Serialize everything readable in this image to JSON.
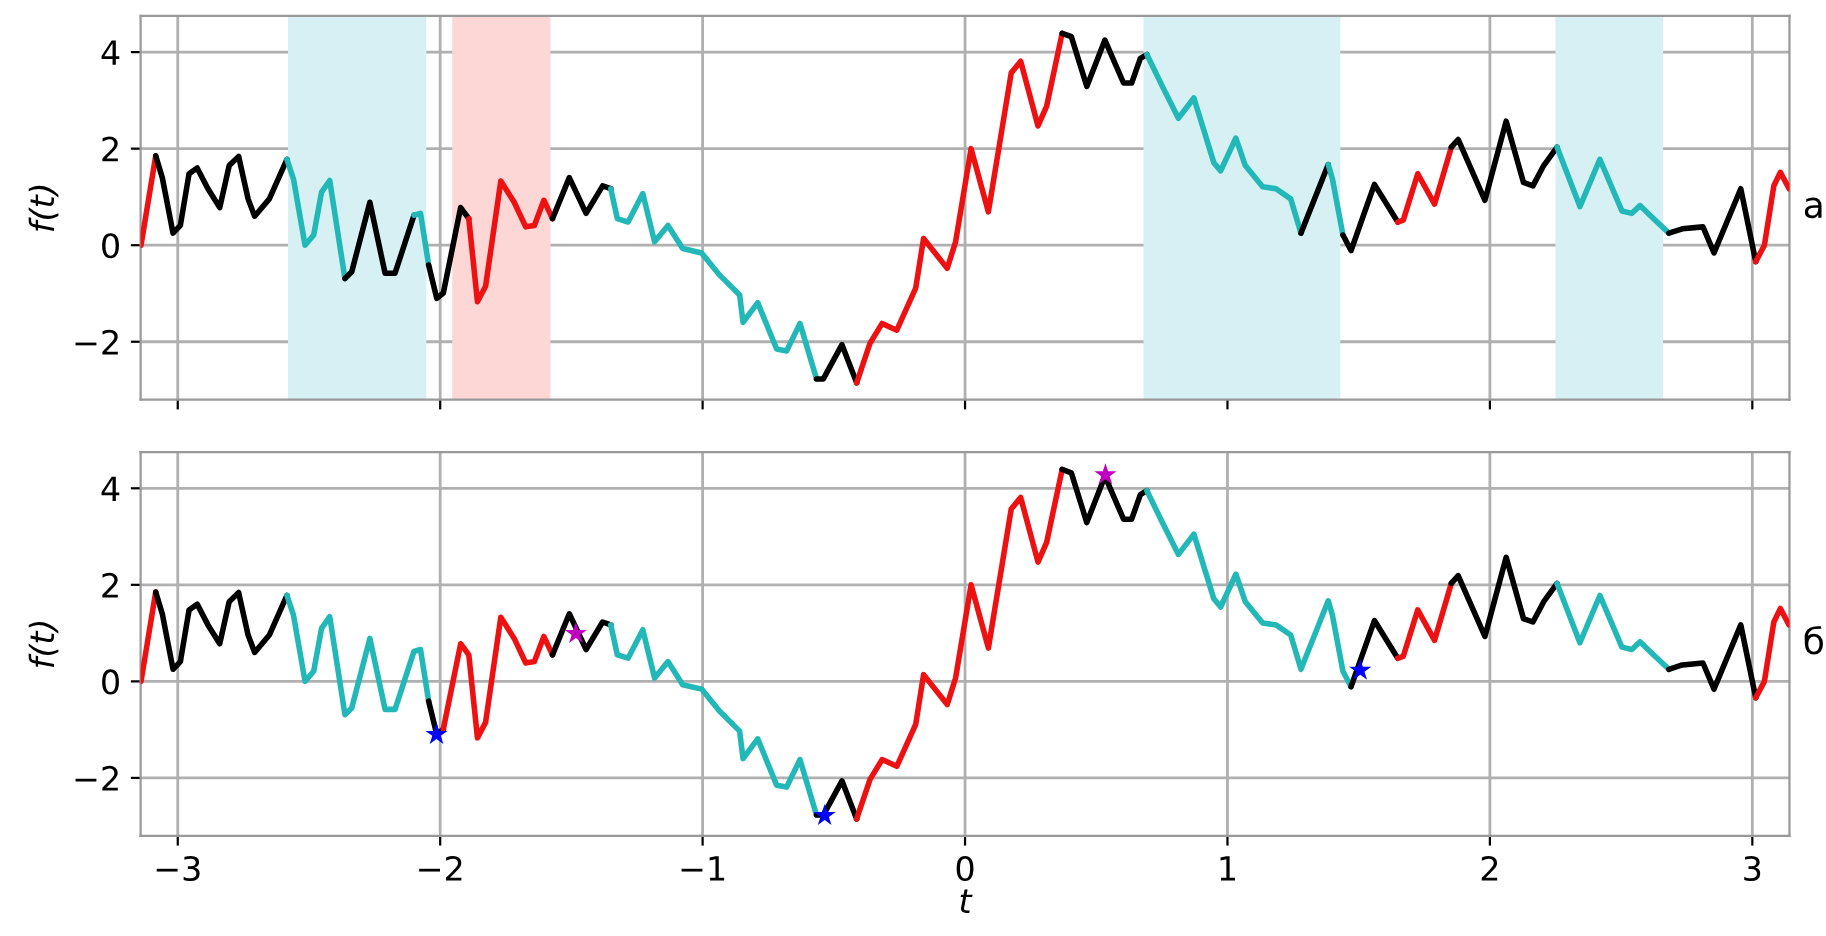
{
  "chart_data": [
    {
      "type": "line",
      "ylabel": "f(t)",
      "annotations": [
        "а"
      ],
      "xlim": [
        -3.1416,
        3.1416
      ],
      "ylim": [
        -3.2,
        4.75
      ],
      "xticks": [
        -3,
        -2,
        -1,
        0,
        1,
        2,
        3
      ],
      "yticks": [
        -2,
        0,
        2,
        4
      ],
      "tick_labels": "y",
      "grid": true,
      "line_style": "solid",
      "bands": [
        {
          "axis": "x",
          "from": -2.58,
          "to": -2.053,
          "color": "#d6f0f4"
        },
        {
          "axis": "x",
          "from": -1.954,
          "to": -1.58,
          "color": "#fdd6d6"
        },
        {
          "axis": "x",
          "from": 0.68,
          "to": 1.43,
          "color": "#d6f0f4"
        },
        {
          "axis": "x",
          "from": 2.25,
          "to": 2.66,
          "color": "#d6f0f4"
        }
      ],
      "series": [
        {
          "color": "#ee1111",
          "x": [
            -3.14,
            -3.084
          ],
          "values": [
            0.0,
            1.85
          ]
        },
        {
          "color": "#000000",
          "x": [
            -3.084,
            -3.059,
            -3.018,
            -2.99,
            -2.957,
            -2.926,
            -2.885,
            -2.84,
            -2.804,
            -2.768,
            -2.732,
            -2.707,
            -2.651,
            -2.584
          ],
          "values": [
            1.85,
            1.4,
            0.25,
            0.41,
            1.48,
            1.6,
            1.17,
            0.78,
            1.65,
            1.84,
            0.96,
            0.6,
            0.96,
            1.78
          ]
        },
        {
          "color": "#22b8b8",
          "x": [
            -2.584,
            -2.559,
            -2.515,
            -2.482,
            -2.452,
            -2.421,
            -2.363
          ],
          "values": [
            1.78,
            1.37,
            0.0,
            0.21,
            1.1,
            1.34,
            -0.69
          ]
        },
        {
          "color": "#000000",
          "x": [
            -2.363,
            -2.337,
            -2.268,
            -2.21,
            -2.172,
            -2.1
          ],
          "values": [
            -0.69,
            -0.55,
            0.89,
            -0.58,
            -0.58,
            0.62
          ]
        },
        {
          "color": "#22b8b8",
          "x": [
            -2.1,
            -2.075,
            -2.044
          ],
          "values": [
            0.62,
            0.66,
            -0.41
          ]
        },
        {
          "color": "#000000",
          "x": [
            -2.044,
            -2.013,
            -1.988,
            -1.922,
            -1.891
          ],
          "values": [
            -0.41,
            -1.1,
            -0.99,
            0.78,
            0.55
          ]
        },
        {
          "color": "#ee1111",
          "x": [
            -1.891,
            -1.858,
            -1.827,
            -1.769,
            -1.718,
            -1.674,
            -1.641,
            -1.605,
            -1.572
          ],
          "values": [
            0.55,
            -1.17,
            -0.85,
            1.33,
            0.89,
            0.38,
            0.41,
            0.93,
            0.55
          ]
        },
        {
          "color": "#000000",
          "x": [
            -1.572,
            -1.508,
            -1.444,
            -1.381,
            -1.35
          ],
          "values": [
            0.55,
            1.4,
            0.66,
            1.23,
            1.17
          ]
        },
        {
          "color": "#22b8b8",
          "x": [
            -1.35,
            -1.325,
            -1.284,
            -1.228,
            -1.183,
            -1.132,
            -1.076,
            -1.004,
            -0.935,
            -0.859,
            -0.846,
            -0.79,
            -0.718,
            -0.68,
            -0.629,
            -0.566
          ],
          "values": [
            1.17,
            0.55,
            0.48,
            1.07,
            0.07,
            0.41,
            -0.07,
            -0.16,
            -0.62,
            -1.03,
            -1.6,
            -1.19,
            -2.15,
            -2.19,
            -1.62,
            -2.77
          ]
        },
        {
          "color": "#000000",
          "x": [
            -0.566,
            -0.54,
            -0.469,
            -0.413
          ],
          "values": [
            -2.77,
            -2.77,
            -2.06,
            -2.85
          ]
        },
        {
          "color": "#ee1111",
          "x": [
            -0.413,
            -0.362,
            -0.316,
            -0.26,
            -0.188,
            -0.158,
            -0.068,
            -0.036,
            0.023,
            0.089,
            0.176,
            0.212,
            0.278,
            0.311,
            0.37
          ],
          "values": [
            -2.85,
            -2.03,
            -1.62,
            -1.76,
            -0.89,
            0.14,
            -0.48,
            0.07,
            2.0,
            0.69,
            3.57,
            3.81,
            2.47,
            2.88,
            4.39
          ]
        },
        {
          "color": "#000000",
          "x": [
            0.37,
            0.405,
            0.464,
            0.533,
            0.604,
            0.635,
            0.668,
            0.693
          ],
          "values": [
            4.39,
            4.32,
            3.29,
            4.25,
            3.36,
            3.36,
            3.87,
            3.95
          ]
        },
        {
          "color": "#22b8b8",
          "x": [
            0.693,
            0.752,
            0.813,
            0.872,
            0.948,
            0.974,
            1.032,
            1.068,
            1.134,
            1.185,
            1.241,
            1.28
          ],
          "values": [
            3.95,
            3.29,
            2.63,
            3.05,
            1.71,
            1.54,
            2.22,
            1.65,
            1.21,
            1.17,
            0.96,
            0.25
          ]
        },
        {
          "color": "#000000",
          "x": [
            1.28,
            1.384
          ],
          "values": [
            0.25,
            1.67
          ]
        },
        {
          "color": "#22b8b8",
          "x": [
            1.384,
            1.4,
            1.44
          ],
          "values": [
            1.67,
            1.37,
            0.21
          ]
        },
        {
          "color": "#000000",
          "x": [
            1.44,
            1.471,
            1.56,
            1.649
          ],
          "values": [
            0.21,
            -0.11,
            1.26,
            0.48
          ]
        },
        {
          "color": "#ee1111",
          "x": [
            1.649,
            1.67,
            1.725,
            1.789,
            1.853
          ],
          "values": [
            0.48,
            0.52,
            1.48,
            0.85,
            2.03
          ]
        },
        {
          "color": "#000000",
          "x": [
            1.853,
            1.879,
            1.981,
            2.062,
            2.128,
            2.164,
            2.205,
            2.256
          ],
          "values": [
            2.03,
            2.19,
            0.93,
            2.57,
            1.3,
            1.23,
            1.65,
            2.03
          ]
        },
        {
          "color": "#22b8b8",
          "x": [
            2.256,
            2.343,
            2.419,
            2.503,
            2.541,
            2.572,
            2.618,
            2.682
          ],
          "values": [
            2.03,
            0.8,
            1.78,
            0.71,
            0.66,
            0.82,
            0.58,
            0.25
          ]
        },
        {
          "color": "#000000",
          "x": [
            2.682,
            2.733,
            2.812,
            2.854,
            2.956,
            3.013
          ],
          "values": [
            0.25,
            0.34,
            0.38,
            -0.16,
            1.17,
            -0.34
          ]
        },
        {
          "color": "#ee1111",
          "x": [
            3.013,
            3.046,
            3.082,
            3.107,
            3.14
          ],
          "values": [
            -0.34,
            0.0,
            1.23,
            1.51,
            1.17
          ]
        }
      ]
    },
    {
      "type": "line",
      "xlabel": "t",
      "ylabel": "f(t)",
      "annotations": [
        "б"
      ],
      "xlim": [
        -3.1416,
        3.1416
      ],
      "ylim": [
        -3.2,
        4.75
      ],
      "xticks": [
        -3,
        -2,
        -1,
        0,
        1,
        2,
        3
      ],
      "yticks": [
        -2,
        0,
        2,
        4
      ],
      "grid": true,
      "line_style": "solid",
      "series": [
        {
          "color": "#ee1111",
          "x": [
            -3.14,
            -3.084
          ],
          "values": [
            0.0,
            1.85
          ]
        },
        {
          "color": "#000000",
          "x": [
            -3.084,
            -3.059,
            -3.018,
            -2.99,
            -2.957,
            -2.926,
            -2.885,
            -2.84,
            -2.804,
            -2.768,
            -2.732,
            -2.707,
            -2.651,
            -2.584
          ],
          "values": [
            1.85,
            1.4,
            0.25,
            0.41,
            1.48,
            1.6,
            1.17,
            0.78,
            1.65,
            1.84,
            0.96,
            0.6,
            0.96,
            1.78
          ]
        },
        {
          "color": "#22b8b8",
          "x": [
            -2.584,
            -2.559,
            -2.515,
            -2.482,
            -2.452,
            -2.421,
            -2.363,
            -2.337,
            -2.268,
            -2.21,
            -2.172,
            -2.1,
            -2.075,
            -2.044
          ],
          "values": [
            1.78,
            1.37,
            0.0,
            0.21,
            1.1,
            1.34,
            -0.69,
            -0.55,
            0.89,
            -0.58,
            -0.58,
            0.62,
            0.66,
            -0.41
          ]
        },
        {
          "color": "#000000",
          "x": [
            -2.044,
            -2.013,
            -1.988
          ],
          "values": [
            -0.41,
            -1.1,
            -0.99
          ]
        },
        {
          "color": "#ee1111",
          "x": [
            -1.988,
            -1.922,
            -1.891,
            -1.858,
            -1.827,
            -1.769,
            -1.718,
            -1.674,
            -1.641,
            -1.605,
            -1.572
          ],
          "values": [
            -0.99,
            0.78,
            0.55,
            -1.17,
            -0.85,
            1.33,
            0.89,
            0.38,
            0.41,
            0.93,
            0.55
          ]
        },
        {
          "color": "#000000",
          "x": [
            -1.572,
            -1.508,
            -1.444,
            -1.381,
            -1.35
          ],
          "values": [
            0.55,
            1.4,
            0.66,
            1.23,
            1.17
          ]
        },
        {
          "color": "#22b8b8",
          "x": [
            -1.35,
            -1.325,
            -1.284,
            -1.228,
            -1.183,
            -1.132,
            -1.076,
            -1.004,
            -0.935,
            -0.859,
            -0.846,
            -0.79,
            -0.718,
            -0.68,
            -0.629,
            -0.566
          ],
          "values": [
            1.17,
            0.55,
            0.48,
            1.07,
            0.07,
            0.41,
            -0.07,
            -0.16,
            -0.62,
            -1.03,
            -1.6,
            -1.19,
            -2.15,
            -2.19,
            -1.62,
            -2.77
          ]
        },
        {
          "color": "#000000",
          "x": [
            -0.566,
            -0.54,
            -0.469,
            -0.413
          ],
          "values": [
            -2.77,
            -2.77,
            -2.06,
            -2.85
          ]
        },
        {
          "color": "#ee1111",
          "x": [
            -0.413,
            -0.362,
            -0.316,
            -0.26,
            -0.188,
            -0.158,
            -0.068,
            -0.036,
            0.023,
            0.089,
            0.176,
            0.212,
            0.278,
            0.311,
            0.37
          ],
          "values": [
            -2.85,
            -2.03,
            -1.62,
            -1.76,
            -0.89,
            0.14,
            -0.48,
            0.07,
            2.0,
            0.69,
            3.57,
            3.81,
            2.47,
            2.88,
            4.39
          ]
        },
        {
          "color": "#000000",
          "x": [
            0.37,
            0.405,
            0.464,
            0.533,
            0.604,
            0.635,
            0.668,
            0.693
          ],
          "values": [
            4.39,
            4.32,
            3.29,
            4.25,
            3.36,
            3.36,
            3.87,
            3.95
          ]
        },
        {
          "color": "#22b8b8",
          "x": [
            0.693,
            0.752,
            0.813,
            0.872,
            0.948,
            0.974,
            1.032,
            1.068,
            1.134,
            1.185,
            1.241,
            1.28,
            1.384,
            1.4,
            1.44,
            1.471
          ],
          "values": [
            3.95,
            3.29,
            2.63,
            3.05,
            1.71,
            1.54,
            2.22,
            1.65,
            1.21,
            1.17,
            0.96,
            0.25,
            1.67,
            1.37,
            0.21,
            -0.11
          ]
        },
        {
          "color": "#000000",
          "x": [
            1.471,
            1.56,
            1.649
          ],
          "values": [
            -0.11,
            1.26,
            0.48
          ]
        },
        {
          "color": "#ee1111",
          "x": [
            1.649,
            1.67,
            1.725,
            1.789,
            1.853
          ],
          "values": [
            0.48,
            0.52,
            1.48,
            0.85,
            2.03
          ]
        },
        {
          "color": "#000000",
          "x": [
            1.853,
            1.879,
            1.981,
            2.062,
            2.128,
            2.164,
            2.205,
            2.256
          ],
          "values": [
            2.03,
            2.19,
            0.93,
            2.57,
            1.3,
            1.23,
            1.65,
            2.03
          ]
        },
        {
          "color": "#22b8b8",
          "x": [
            2.256,
            2.343,
            2.419,
            2.503,
            2.541,
            2.572,
            2.618,
            2.682
          ],
          "values": [
            2.03,
            0.8,
            1.78,
            0.71,
            0.66,
            0.82,
            0.58,
            0.25
          ]
        },
        {
          "color": "#000000",
          "x": [
            2.682,
            2.733,
            2.812,
            2.854,
            2.956,
            3.013
          ],
          "values": [
            0.25,
            0.34,
            0.38,
            -0.16,
            1.17,
            -0.34
          ]
        },
        {
          "color": "#ee1111",
          "x": [
            3.013,
            3.046,
            3.082,
            3.107,
            3.14
          ],
          "values": [
            -0.34,
            0.0,
            1.23,
            1.51,
            1.17
          ]
        },
        {
          "type": "scatter",
          "marker": "star",
          "color": "#0000ff",
          "x": [
            -2.014,
            -0.535,
            1.506
          ],
          "values": [
            -1.1,
            -2.78,
            0.23
          ]
        },
        {
          "type": "scatter",
          "marker": "star",
          "color": "#bf00bf",
          "x": [
            -1.483,
            0.535
          ],
          "values": [
            0.99,
            4.28
          ]
        }
      ]
    }
  ]
}
